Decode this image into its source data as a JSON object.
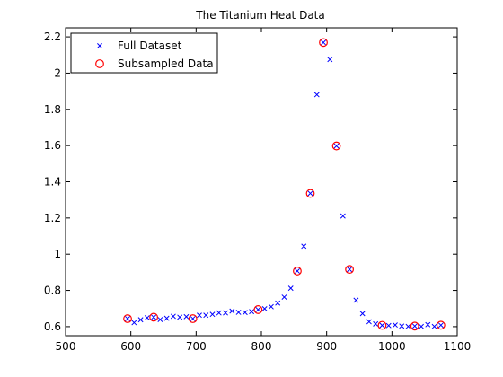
{
  "chart_data": {
    "type": "scatter",
    "title": "The Titanium Heat Data",
    "xlabel": "",
    "ylabel": "",
    "xlim": [
      500,
      1100
    ],
    "ylim": [
      0.55,
      2.25
    ],
    "x_ticks": [
      500,
      600,
      700,
      800,
      900,
      1000,
      1100
    ],
    "x_tick_labels": [
      "500",
      "600",
      "700",
      "800",
      "900",
      "1000",
      "1100"
    ],
    "y_ticks": [
      0.6,
      0.8,
      1.0,
      1.2,
      1.4,
      1.6,
      1.8,
      2.0,
      2.2
    ],
    "y_tick_labels": [
      "0.6",
      "0.8",
      "1",
      "1.2",
      "1.4",
      "1.6",
      "1.8",
      "2",
      "2.2"
    ],
    "grid": false,
    "legend_position": "top-left",
    "series": [
      {
        "name": "Full Dataset",
        "marker": "x",
        "color": "#0000ff",
        "x": [
          595,
          605,
          615,
          625,
          635,
          645,
          655,
          665,
          675,
          685,
          695,
          705,
          715,
          725,
          735,
          745,
          755,
          765,
          775,
          785,
          795,
          805,
          815,
          825,
          835,
          845,
          855,
          865,
          875,
          885,
          895,
          905,
          915,
          925,
          935,
          945,
          955,
          965,
          975,
          985,
          995,
          1005,
          1015,
          1025,
          1035,
          1045,
          1055,
          1065,
          1075
        ],
        "y": [
          0.644,
          0.622,
          0.638,
          0.649,
          0.652,
          0.639,
          0.646,
          0.657,
          0.652,
          0.655,
          0.644,
          0.663,
          0.663,
          0.668,
          0.676,
          0.676,
          0.686,
          0.679,
          0.678,
          0.683,
          0.694,
          0.699,
          0.71,
          0.73,
          0.763,
          0.812,
          0.907,
          1.044,
          1.336,
          1.881,
          2.169,
          2.075,
          1.598,
          1.211,
          0.916,
          0.746,
          0.672,
          0.627,
          0.615,
          0.607,
          0.606,
          0.609,
          0.603,
          0.601,
          0.603,
          0.601,
          0.611,
          0.601,
          0.608
        ]
      },
      {
        "name": "Subsampled Data",
        "marker": "o",
        "color": "#ff0000",
        "x": [
          595,
          635,
          695,
          795,
          855,
          875,
          895,
          915,
          935,
          985,
          1035,
          1075
        ],
        "y": [
          0.644,
          0.652,
          0.644,
          0.694,
          0.907,
          1.336,
          2.169,
          1.598,
          0.916,
          0.607,
          0.603,
          0.608
        ]
      }
    ]
  }
}
